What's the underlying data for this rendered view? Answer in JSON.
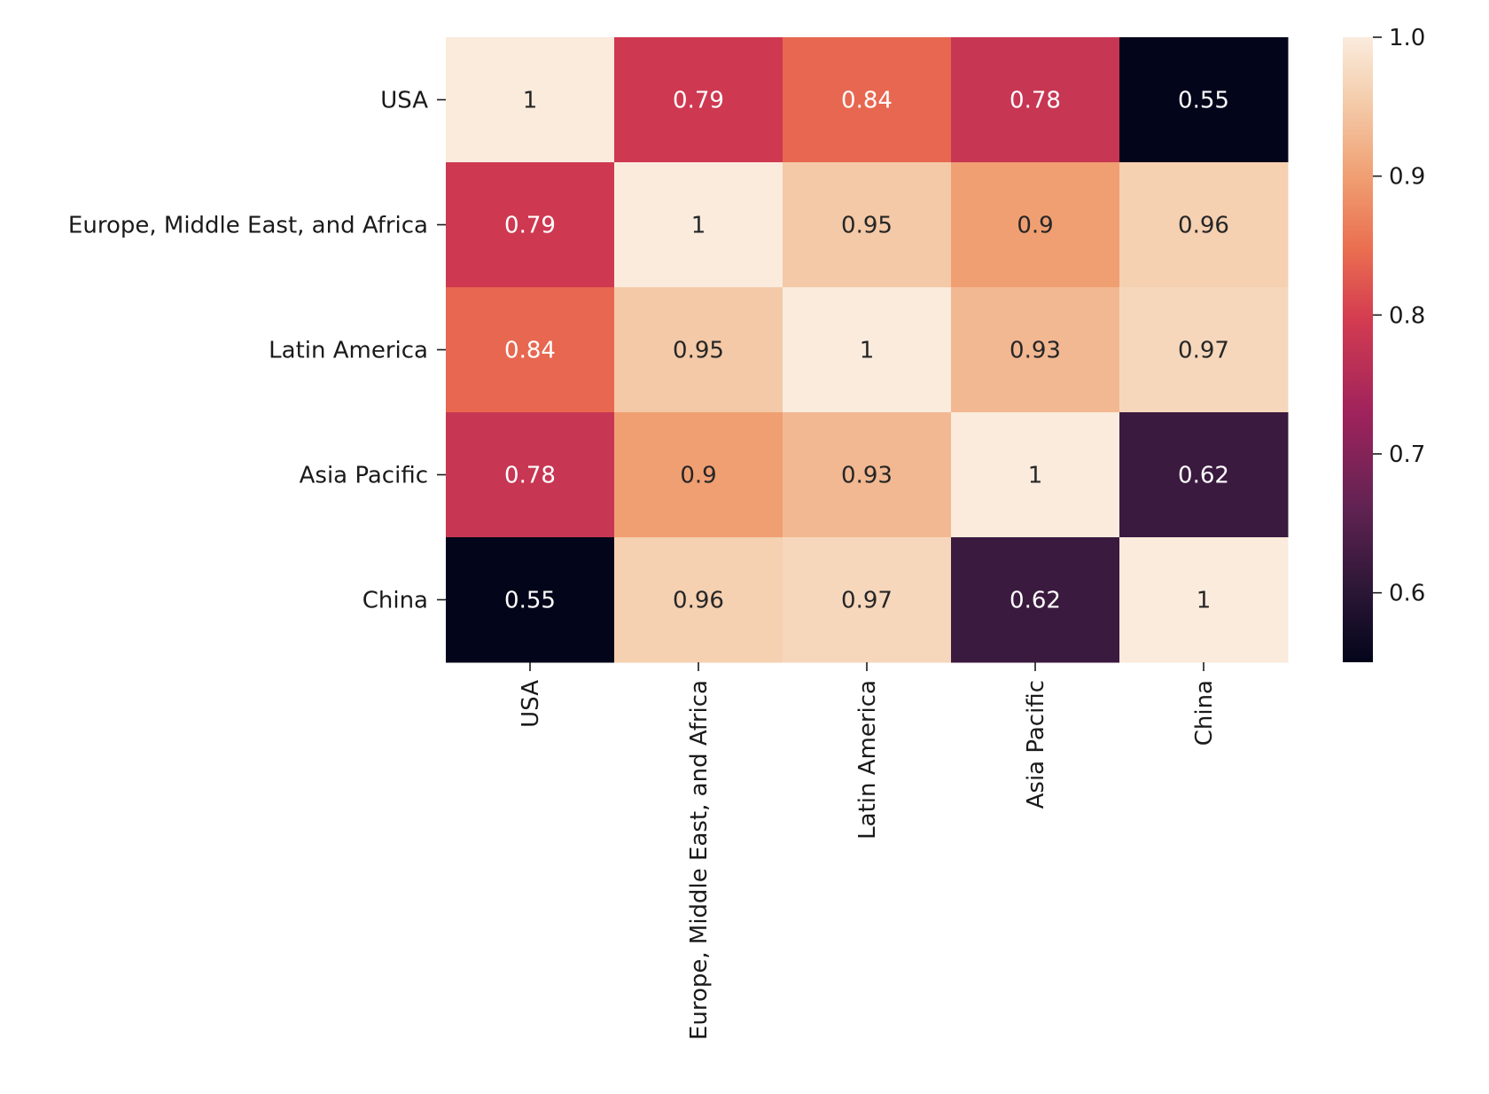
{
  "chart_data": {
    "type": "heatmap",
    "title": "",
    "xlabel": "",
    "ylabel": "",
    "rows": [
      "USA",
      "Europe, Middle East, and Africa",
      "Latin America",
      "Asia Pacific",
      "China"
    ],
    "columns": [
      "USA",
      "Europe, Middle East, and Africa",
      "Latin America",
      "Asia Pacific",
      "China"
    ],
    "values": [
      [
        1,
        0.79,
        0.84,
        0.78,
        0.55
      ],
      [
        0.79,
        1,
        0.95,
        0.9,
        0.96
      ],
      [
        0.84,
        0.95,
        1,
        0.93,
        0.97
      ],
      [
        0.78,
        0.9,
        0.93,
        1,
        0.62
      ],
      [
        0.55,
        0.96,
        0.97,
        0.62,
        1
      ]
    ],
    "cell_labels": [
      [
        "1",
        "0.79",
        "0.84",
        "0.78",
        "0.55"
      ],
      [
        "0.79",
        "1",
        "0.95",
        "0.9",
        "0.96"
      ],
      [
        "0.84",
        "0.95",
        "1",
        "0.93",
        "0.97"
      ],
      [
        "0.78",
        "0.9",
        "0.93",
        "1",
        "0.62"
      ],
      [
        "0.55",
        "0.96",
        "0.97",
        "0.62",
        "1"
      ]
    ],
    "colorbar": {
      "min": 0.55,
      "max": 1.0,
      "ticks": [
        "0.6",
        "0.7",
        "0.8",
        "0.9",
        "1.0"
      ],
      "colormap": "rocket"
    },
    "x_tick_rotation": "vertical",
    "grid": false
  }
}
